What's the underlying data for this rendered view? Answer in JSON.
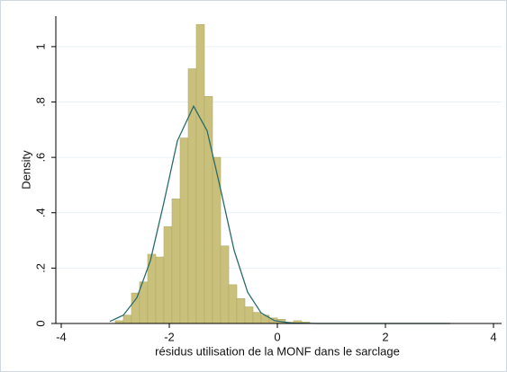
{
  "chart_data": {
    "type": "histogram",
    "xlabel": "résidus utilisation de la MONF dans le sarclage",
    "ylabel": "Density",
    "bins": [
      -3.0,
      -2.85,
      -2.7,
      -2.55,
      -2.4,
      -2.25,
      -2.1,
      -1.95,
      -1.8,
      -1.65,
      -1.5,
      -1.35,
      -1.2,
      -1.05,
      -0.9,
      -0.75,
      -0.6,
      -0.45,
      -0.3,
      -0.15,
      0,
      0.15,
      0.3,
      0.45,
      0.6
    ],
    "values": [
      0.01,
      0.03,
      0.11,
      0.15,
      0.25,
      0.24,
      0.35,
      0.45,
      0.67,
      0.92,
      1.08,
      0.82,
      0.6,
      0.28,
      0.14,
      0.09,
      0.06,
      0.04,
      0.03,
      0.02,
      0.015,
      0.005,
      0.01,
      0.005
    ],
    "color": "#c9c07c",
    "edgecolor": "#b3aa68",
    "density_curve": {
      "color": "#2a6b6b",
      "x": [
        -3.1,
        -2.85,
        -2.6,
        -2.35,
        -2.1,
        -1.85,
        -1.55,
        -1.3,
        -1.05,
        -0.8,
        -0.55,
        -0.3,
        -0.05,
        0.25,
        0.75,
        3.2
      ],
      "y": [
        0.0075,
        0.03,
        0.093,
        0.227,
        0.437,
        0.66,
        0.785,
        0.696,
        0.484,
        0.264,
        0.113,
        0.038,
        0.01,
        0.0015,
        0,
        0
      ]
    },
    "xlim": [
      -4.1,
      4.15
    ],
    "xticks": [
      -4,
      -2,
      0,
      2,
      4
    ],
    "ylim": [
      0,
      1.11
    ],
    "yticks": [
      0,
      {
        "value": 0.2,
        "label": ".2"
      },
      {
        "value": 0.4,
        "label": ".4"
      },
      {
        "value": 0.6,
        "label": ".6"
      },
      {
        "value": 0.8,
        "label": ".8"
      },
      1
    ],
    "grid": true
  }
}
